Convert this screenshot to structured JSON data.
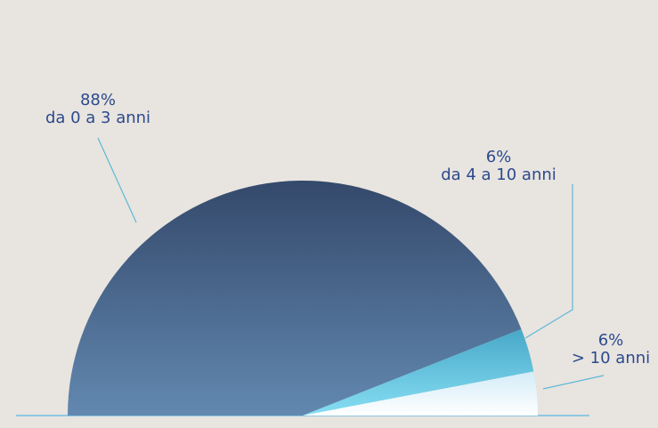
{
  "chart_data": {
    "type": "semi-pie",
    "categories": [
      "da 0 a 3 anni",
      "da 4 a 10 anni",
      "> 10 anni"
    ],
    "values": [
      88,
      6,
      6
    ],
    "value_labels": [
      "88%",
      "6%",
      "6%"
    ],
    "colors": [
      [
        "#34496b",
        "#6288b0"
      ],
      [
        "#48a8c8",
        "#86def3"
      ],
      [
        "#d3ecf8",
        "#ffffff"
      ]
    ]
  }
}
